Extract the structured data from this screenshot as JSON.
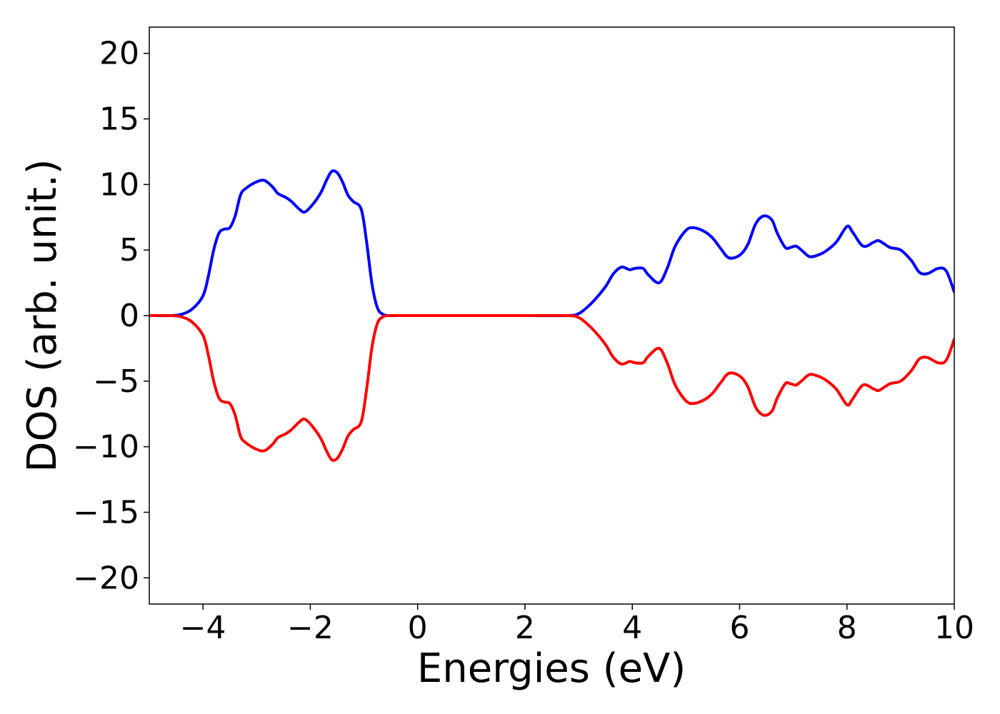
{
  "chart_data": {
    "type": "line",
    "title": "",
    "xlabel": "Energies (eV)",
    "ylabel": "DOS (arb. unit.)",
    "xlim": [
      -5,
      10
    ],
    "ylim": [
      -22,
      22
    ],
    "xticks": [
      -4,
      -2,
      0,
      2,
      4,
      6,
      8,
      10
    ],
    "xtick_labels": [
      "−4",
      "−2",
      "0",
      "2",
      "4",
      "6",
      "8",
      "10"
    ],
    "yticks": [
      20,
      15,
      10,
      5,
      0,
      -5,
      -10,
      -15,
      -20
    ],
    "ytick_labels": [
      "20",
      "15",
      "10",
      "5",
      "0",
      "−5",
      "−10",
      "−15",
      "−20"
    ],
    "grid": false,
    "legend": "none",
    "series": [
      {
        "color": "#0000ff",
        "x": [
          -5,
          -4.6,
          -4.4,
          -4.2,
          -4.0,
          -3.9,
          -3.8,
          -3.7,
          -3.6,
          -3.5,
          -3.4,
          -3.3,
          -3.2,
          -3.0,
          -2.85,
          -2.7,
          -2.6,
          -2.45,
          -2.35,
          -2.2,
          -2.1,
          -1.95,
          -1.8,
          -1.7,
          -1.6,
          -1.5,
          -1.4,
          -1.3,
          -1.2,
          -1.05,
          -0.95,
          -0.85,
          -0.75,
          -0.65,
          -0.55,
          -0.4,
          0,
          1,
          2,
          2.8,
          3.0,
          3.15,
          3.3,
          3.5,
          3.65,
          3.8,
          3.95,
          4.05,
          4.2,
          4.3,
          4.5,
          4.65,
          4.8,
          5.0,
          5.15,
          5.35,
          5.5,
          5.65,
          5.8,
          6.0,
          6.15,
          6.3,
          6.45,
          6.6,
          6.7,
          6.85,
          6.95,
          7.05,
          7.15,
          7.3,
          7.45,
          7.6,
          7.8,
          8.0,
          8.1,
          8.3,
          8.5,
          8.6,
          8.8,
          9.0,
          9.2,
          9.35,
          9.5,
          9.7,
          9.85,
          10.0
        ],
        "y": [
          0,
          0,
          0.1,
          0.5,
          1.5,
          3.0,
          5.0,
          6.3,
          6.6,
          6.7,
          7.6,
          9.2,
          9.7,
          10.2,
          10.3,
          9.8,
          9.3,
          9.0,
          8.7,
          8.1,
          7.9,
          8.5,
          9.4,
          10.3,
          11.0,
          10.9,
          10.2,
          9.2,
          8.7,
          8.1,
          5.6,
          2.4,
          0.6,
          0.1,
          0,
          0,
          0,
          0,
          0,
          0,
          0.15,
          0.6,
          1.2,
          2.2,
          3.2,
          3.7,
          3.5,
          3.6,
          3.6,
          3.1,
          2.5,
          3.6,
          5.3,
          6.5,
          6.7,
          6.4,
          5.9,
          5.1,
          4.4,
          4.6,
          5.4,
          7.0,
          7.6,
          7.3,
          6.3,
          5.2,
          5.2,
          5.3,
          5.0,
          4.5,
          4.6,
          4.9,
          5.6,
          6.8,
          6.4,
          5.3,
          5.6,
          5.7,
          5.2,
          5.0,
          4.2,
          3.3,
          3.2,
          3.6,
          3.4,
          1.8
        ]
      },
      {
        "color": "#ff0000",
        "x": [
          -5,
          -4.6,
          -4.4,
          -4.2,
          -4.0,
          -3.9,
          -3.8,
          -3.7,
          -3.6,
          -3.5,
          -3.4,
          -3.3,
          -3.2,
          -3.0,
          -2.85,
          -2.7,
          -2.6,
          -2.45,
          -2.35,
          -2.2,
          -2.1,
          -1.95,
          -1.8,
          -1.7,
          -1.6,
          -1.5,
          -1.4,
          -1.3,
          -1.2,
          -1.05,
          -0.95,
          -0.85,
          -0.75,
          -0.65,
          -0.55,
          -0.4,
          0,
          1,
          2,
          2.8,
          3.0,
          3.15,
          3.3,
          3.5,
          3.65,
          3.8,
          3.95,
          4.05,
          4.2,
          4.3,
          4.5,
          4.65,
          4.8,
          5.0,
          5.15,
          5.35,
          5.5,
          5.65,
          5.8,
          6.0,
          6.15,
          6.3,
          6.45,
          6.6,
          6.7,
          6.85,
          6.95,
          7.05,
          7.15,
          7.3,
          7.45,
          7.6,
          7.8,
          8.0,
          8.1,
          8.3,
          8.5,
          8.6,
          8.8,
          9.0,
          9.2,
          9.35,
          9.5,
          9.7,
          9.85,
          10.0
        ],
        "y": [
          0,
          0,
          -0.1,
          -0.5,
          -1.5,
          -3.0,
          -5.0,
          -6.3,
          -6.6,
          -6.7,
          -7.6,
          -9.2,
          -9.7,
          -10.2,
          -10.3,
          -9.8,
          -9.3,
          -9.0,
          -8.7,
          -8.1,
          -7.9,
          -8.5,
          -9.4,
          -10.3,
          -11.0,
          -10.9,
          -10.2,
          -9.2,
          -8.7,
          -8.1,
          -5.6,
          -2.4,
          -0.6,
          -0.1,
          0,
          0,
          0,
          0,
          0,
          0,
          -0.15,
          -0.6,
          -1.2,
          -2.2,
          -3.2,
          -3.7,
          -3.5,
          -3.6,
          -3.6,
          -3.1,
          -2.5,
          -3.6,
          -5.3,
          -6.5,
          -6.7,
          -6.4,
          -5.9,
          -5.1,
          -4.4,
          -4.6,
          -5.4,
          -7.0,
          -7.6,
          -7.3,
          -6.3,
          -5.2,
          -5.2,
          -5.3,
          -5.0,
          -4.5,
          -4.6,
          -4.9,
          -5.6,
          -6.8,
          -6.4,
          -5.3,
          -5.6,
          -5.7,
          -5.2,
          -5.0,
          -4.2,
          -3.3,
          -3.2,
          -3.6,
          -3.4,
          -1.8
        ]
      }
    ]
  }
}
